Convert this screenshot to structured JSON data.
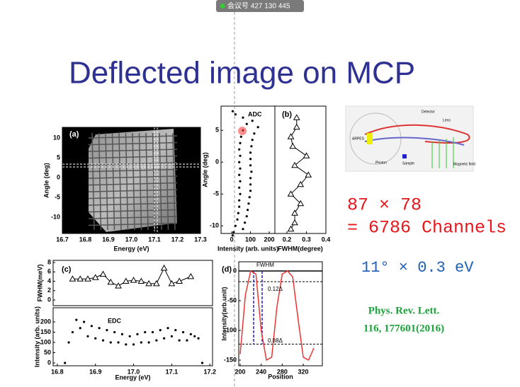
{
  "meeting_badge": "会议号 427 130 445",
  "title": "Deflected image on MCP",
  "panel_a": {
    "label": "(a)",
    "xlabel": "Energy (eV)",
    "ylabel": "Angle (deg)",
    "xlim": [
      16.7,
      17.3
    ],
    "xticks": [
      16.7,
      16.8,
      16.9,
      {
        "value": 17,
        "label": "17.0"
      },
      17.1,
      17.2,
      17.3
    ],
    "ylim": [
      -14.1,
      12.7
    ],
    "yticks": [
      -10,
      -5,
      0,
      5,
      10
    ]
  },
  "adc": {
    "label": "ADC",
    "xlabel": "Intensity (arb. units)",
    "ylabel": "Angle (deg)",
    "xlim": [
      -57,
      230
    ],
    "xticks": [
      0,
      100,
      200
    ],
    "ylim": [
      -11.2,
      8.8
    ],
    "yticks": [
      -10,
      -5,
      0,
      5
    ],
    "angle": [
      8,
      7.5,
      7,
      6.5,
      6,
      5.5,
      5,
      4.5,
      4,
      3.5,
      3,
      2.5,
      2,
      1.5,
      1,
      0.5,
      0,
      -0.5,
      -1,
      -1.5,
      -2,
      -2.5,
      -3,
      -3.5,
      -4,
      -4.5,
      -5,
      -5.5,
      -6,
      -6.5,
      -7,
      -7.5,
      -8,
      -8.5,
      -9,
      -9.5,
      -10,
      -10.5,
      -11,
      -11.5
    ],
    "intensity": [
      5,
      20,
      60,
      110,
      80,
      140,
      60,
      120,
      50,
      110,
      45,
      105,
      40,
      100,
      45,
      100,
      40,
      100,
      45,
      105,
      40,
      100,
      45,
      100,
      40,
      100,
      45,
      95,
      40,
      90,
      40,
      85,
      35,
      80,
      30,
      70,
      20,
      60,
      10,
      5
    ]
  },
  "panel_b": {
    "label": "(b)",
    "xlabel": "FWHM(degree)",
    "xlim": [
      0.138,
      0.4
    ],
    "xticks": [
      0.2,
      0.3,
      0.4
    ],
    "ylim": [
      -11.2,
      8.8
    ],
    "angle": [
      7,
      5.5,
      4,
      2.5,
      1,
      -0.5,
      -2,
      -3.5,
      -5,
      -6.5,
      -8,
      -9.5,
      -10.5
    ],
    "fwhm": [
      0.25,
      0.25,
      0.22,
      0.23,
      0.3,
      0.24,
      0.31,
      0.27,
      0.22,
      0.27,
      0.24,
      0.24,
      0.22
    ]
  },
  "panel_c": {
    "label": "(c)",
    "ylabel": "FWHM(meV)",
    "xlim": [
      16.789,
      17.207
    ],
    "ylim": [
      -1.2,
      8.45
    ],
    "yticks": [
      0,
      2,
      4,
      6,
      8
    ],
    "energy": [
      16.84,
      16.86,
      16.88,
      16.9,
      16.92,
      16.94,
      16.96,
      16.98,
      17.0,
      17.02,
      17.04,
      17.06,
      17.08,
      17.1,
      17.12,
      17.15
    ],
    "fwhm": [
      4.5,
      4.5,
      4.5,
      4.8,
      5.5,
      3.8,
      3,
      4,
      4.2,
      4,
      3.5,
      3.5,
      6.8,
      3.5,
      4,
      5
    ]
  },
  "edc": {
    "label": "EDC",
    "xlabel": "Energy (eV)",
    "ylabel": "Intensity (arb. units)",
    "xlim": [
      16.789,
      17.207
    ],
    "xticks": [
      16.8,
      16.9,
      {
        "value": 17,
        "label": "17.0"
      },
      17.1,
      17.2
    ],
    "ylim": [
      -13.8,
      269
    ],
    "yticks": [
      0,
      50,
      100,
      150,
      200
    ],
    "energy": [
      16.82,
      16.83,
      16.84,
      16.85,
      16.86,
      16.87,
      16.88,
      16.89,
      16.9,
      16.91,
      16.92,
      16.93,
      16.94,
      16.95,
      16.96,
      16.97,
      16.98,
      16.99,
      17.0,
      17.01,
      17.02,
      17.03,
      17.04,
      17.05,
      17.06,
      17.07,
      17.08,
      17.09,
      17.1,
      17.11,
      17.12,
      17.13,
      17.14,
      17.15,
      17.16,
      17.17,
      17.18
    ],
    "intensity": [
      0,
      100,
      150,
      210,
      170,
      200,
      130,
      180,
      120,
      170,
      110,
      160,
      100,
      150,
      100,
      140,
      90,
      130,
      90,
      140,
      100,
      150,
      100,
      150,
      110,
      160,
      120,
      170,
      130,
      160,
      110,
      150,
      110,
      140,
      130,
      120,
      0
    ]
  },
  "panel_d": {
    "label": "(d)",
    "annotation": "FWHM",
    "level_labels": [
      "0.12Δ",
      "0.88Δ"
    ],
    "xlabel": "Position",
    "ylabel": "Intensity(arb.unit)",
    "xlim": [
      197.3,
      356.3
    ],
    "xticks": [
      200,
      240,
      280,
      320
    ],
    "ylim": [
      -159.5,
      15.5
    ],
    "yticks": [
      0,
      -50,
      -100,
      -150
    ],
    "fwhm_levels": [
      -18,
      -123
    ],
    "fwhm_edges": [
      225.6,
      241.8
    ],
    "position": [
      200,
      210,
      220,
      230,
      240,
      250,
      260,
      270,
      280,
      290,
      300,
      310,
      320,
      330,
      340
    ],
    "intensity": [
      -140,
      -40,
      0,
      -5,
      -100,
      -150,
      -145,
      -60,
      -5,
      0,
      -10,
      -80,
      -145,
      -150,
      -130
    ]
  },
  "diagram_labels": [
    "Detector",
    "Lens",
    "ARPES",
    "Photon",
    "Sample",
    "Magnetic field"
  ],
  "channels_line1": "87 × 78",
  "channels_line2": "= 6786 Channels",
  "resolution": "11° × 0.3 eV",
  "citation": [
    "Phys. Rev. Lett.",
    "116, 177601(2016)"
  ]
}
